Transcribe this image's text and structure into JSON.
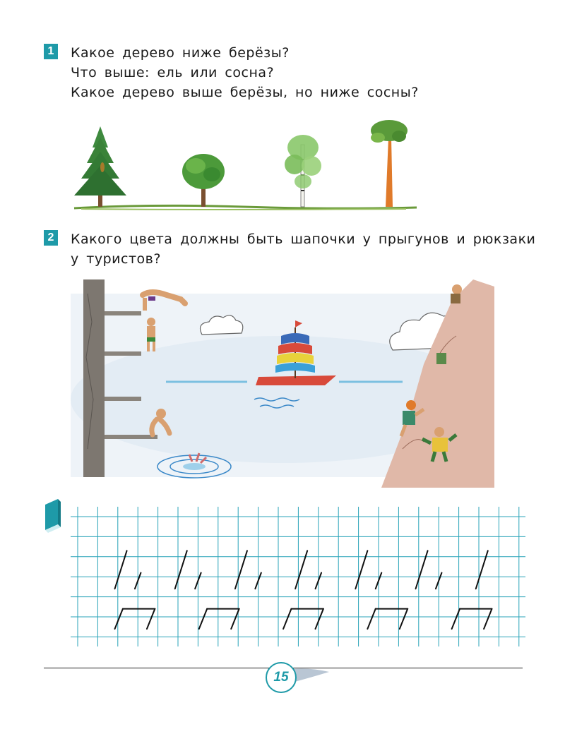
{
  "tasks": [
    {
      "number": "1",
      "lines": [
        "Какое дерево ниже берёзы?",
        "Что выше: ель или сосна?",
        "Какое дерево выше берёзы, но ниже сосны?"
      ]
    },
    {
      "number": "2",
      "lines": [
        "Какого цвета должны быть шапочки у прыгунов и рюкзаки",
        "у туристов?"
      ]
    }
  ],
  "illustrations": {
    "trees": [
      "spruce",
      "round-tree",
      "birch",
      "pine"
    ],
    "scene": [
      "diving-tower",
      "divers",
      "clouds",
      "sailboat",
      "cliff",
      "hikers"
    ]
  },
  "writing_grid": {
    "icon": "notebook-icon"
  },
  "page_number": "15",
  "colors": {
    "accent": "#1e9aa8",
    "grid": "#29a3b8",
    "stroke": "#111111"
  }
}
